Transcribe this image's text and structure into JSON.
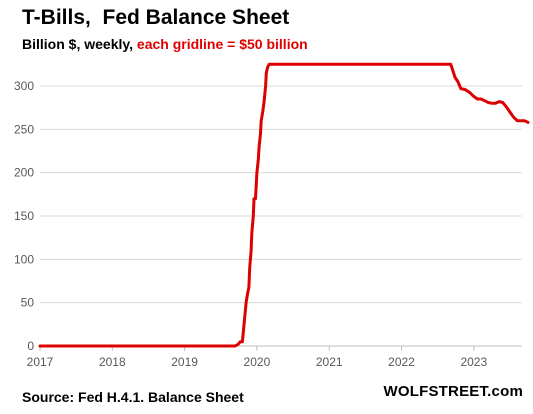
{
  "chart_data": {
    "type": "line",
    "title": "T-Bills,  Fed Balance Sheet",
    "subtitle_units": "Billion $, weekly, ",
    "subtitle_note": "each gridline = $50 billion",
    "source": "Source: Fed H.4.1. Balance Sheet",
    "brand": "WOLFSTREET.com",
    "xlabel": "",
    "ylabel": "",
    "xlim": [
      2017.0,
      2023.78
    ],
    "ylim": [
      0,
      330
    ],
    "x_ticks": [
      "2017",
      "2018",
      "2019",
      "2020",
      "2021",
      "2022",
      "2023"
    ],
    "y_ticks": [
      "0",
      "50",
      "100",
      "150",
      "200",
      "250",
      "300"
    ],
    "grid": true,
    "line_color": "#dd0000",
    "series": [
      {
        "x": [
          2017.0,
          2019.7,
          2019.74,
          2019.77,
          2019.8,
          2019.85,
          2019.87,
          2019.89,
          2019.9,
          2019.92,
          2019.93,
          2019.95,
          2019.96,
          2019.98,
          2020.0,
          2020.02,
          2020.03,
          2020.05,
          2020.06,
          2020.08,
          2020.1,
          2020.12,
          2020.13,
          2020.15,
          2020.17,
          2020.2,
          2022.68,
          2022.71,
          2022.74,
          2022.78,
          2022.82,
          2022.88,
          2022.95,
          2023.0,
          2023.05,
          2023.1,
          2023.15,
          2023.2,
          2023.25,
          2023.3,
          2023.35,
          2023.4,
          2023.45,
          2023.5,
          2023.55,
          2023.6,
          2023.65,
          2023.7,
          2023.75
        ],
        "values": [
          0,
          0,
          2,
          5,
          5,
          50,
          60,
          68,
          90,
          110,
          130,
          150,
          170,
          170,
          200,
          215,
          230,
          245,
          260,
          270,
          282,
          300,
          315,
          322,
          325,
          325,
          325,
          318,
          310,
          305,
          297,
          296,
          292,
          288,
          285,
          285,
          283,
          281,
          280,
          280,
          282,
          281,
          276,
          270,
          264,
          260,
          260,
          260,
          258
        ]
      }
    ]
  }
}
